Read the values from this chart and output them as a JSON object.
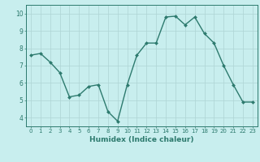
{
  "x": [
    0,
    1,
    2,
    3,
    4,
    5,
    6,
    7,
    8,
    9,
    10,
    11,
    12,
    13,
    14,
    15,
    16,
    17,
    18,
    19,
    20,
    21,
    22,
    23
  ],
  "y": [
    7.6,
    7.7,
    7.2,
    6.6,
    5.2,
    5.3,
    5.8,
    5.9,
    4.35,
    3.8,
    5.9,
    7.6,
    8.3,
    8.3,
    9.8,
    9.85,
    9.35,
    9.8,
    8.85,
    8.3,
    7.0,
    5.9,
    4.9,
    4.9
  ],
  "line_color": "#2d7a6e",
  "marker": "D",
  "marker_size": 2.0,
  "bg_color": "#c8eeee",
  "grid_color": "#aed4d4",
  "xlabel": "Humidex (Indice chaleur)",
  "xlim": [
    -0.5,
    23.5
  ],
  "ylim": [
    3.5,
    10.5
  ],
  "yticks": [
    4,
    5,
    6,
    7,
    8,
    9,
    10
  ],
  "xticks": [
    0,
    1,
    2,
    3,
    4,
    5,
    6,
    7,
    8,
    9,
    10,
    11,
    12,
    13,
    14,
    15,
    16,
    17,
    18,
    19,
    20,
    21,
    22,
    23
  ],
  "xtick_fontsize": 5.0,
  "ytick_fontsize": 5.5,
  "xlabel_fontsize": 6.5,
  "line_width": 1.0
}
